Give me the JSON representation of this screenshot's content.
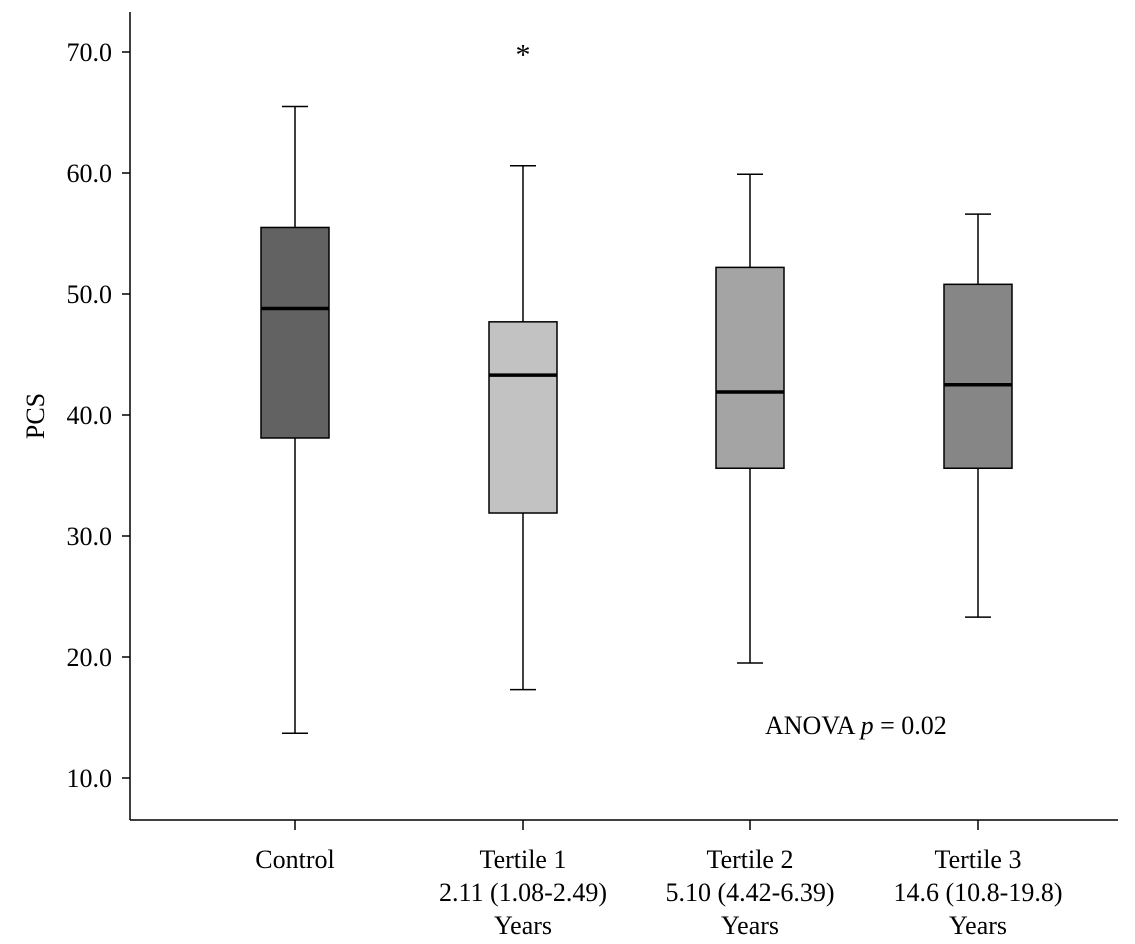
{
  "chart_data": {
    "type": "box",
    "ylabel": "PCS",
    "ylim": [
      5,
      77.5
    ],
    "yticks": [
      10,
      20,
      30,
      40,
      50,
      60,
      70
    ],
    "ytick_labels": [
      "10.0",
      "20.0",
      "30.0",
      "40.0",
      "50.0",
      "60.0",
      "70.0"
    ],
    "annotation": "ANOVA p = 0.02",
    "annotation_parts": {
      "prefix": "ANOVA ",
      "italic": "p",
      "suffix": " = 0.02"
    },
    "groups": [
      {
        "label_lines": [
          "Control"
        ],
        "fill": "#626262",
        "whisker_low": 13.7,
        "q1": 38.1,
        "median": 48.8,
        "q3": 55.5,
        "whisker_high": 65.5,
        "outliers": []
      },
      {
        "label_lines": [
          "Tertile 1",
          "2.11 (1.08-2.49)",
          "Years"
        ],
        "fill": "#c1c2c1",
        "whisker_low": 17.3,
        "q1": 31.9,
        "median": 43.3,
        "q3": 47.7,
        "whisker_high": 60.6,
        "outliers": [
          {
            "value": 70.3,
            "marker": "*"
          }
        ]
      },
      {
        "label_lines": [
          "Tertile 2",
          "5.10 (4.42-6.39)",
          "Years"
        ],
        "fill": "#a3a4a3",
        "whisker_low": 19.5,
        "q1": 35.6,
        "median": 41.9,
        "q3": 52.2,
        "whisker_high": 59.9,
        "outliers": []
      },
      {
        "label_lines": [
          "Tertile 3",
          "14.6 (10.8-19.8)",
          "Years"
        ],
        "fill": "#868686",
        "whisker_low": 23.3,
        "q1": 35.6,
        "median": 42.5,
        "q3": 50.8,
        "whisker_high": 56.6,
        "outliers": []
      }
    ]
  }
}
